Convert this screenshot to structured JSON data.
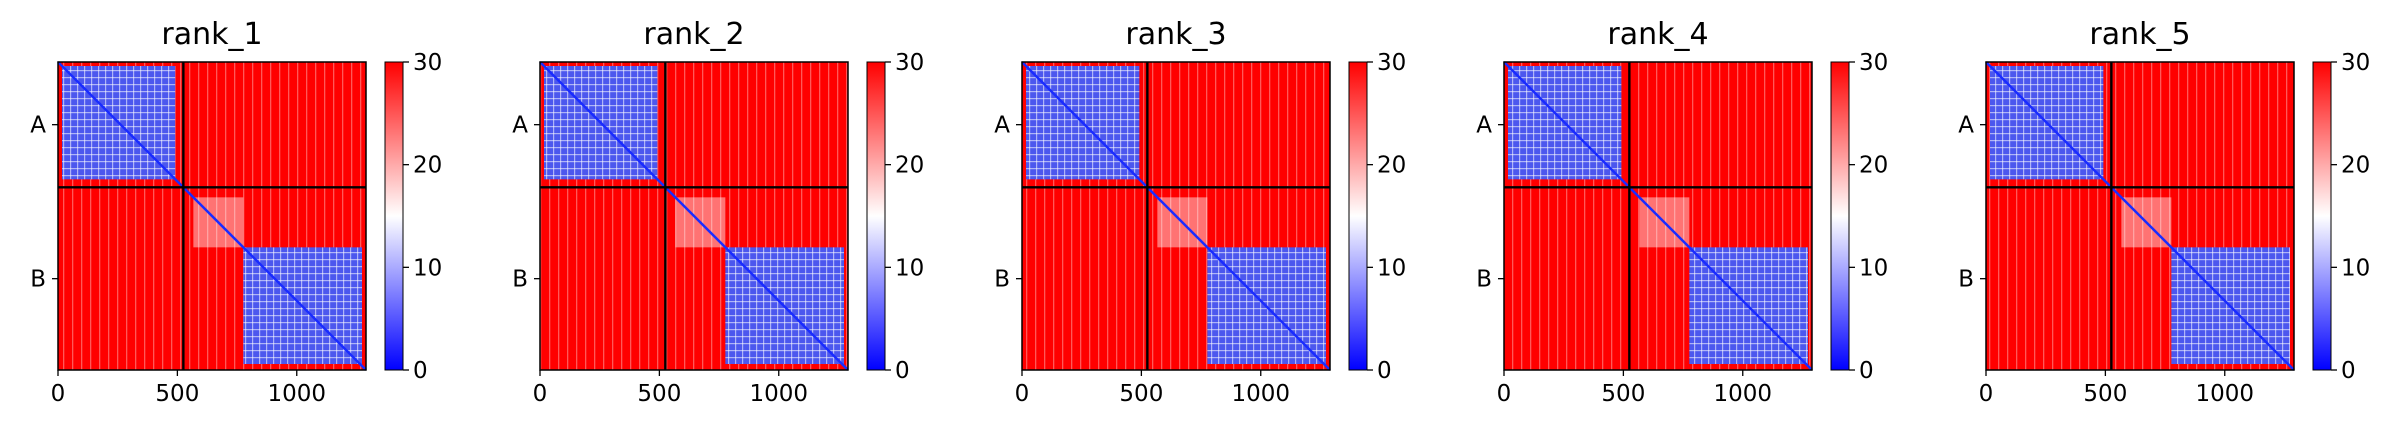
{
  "colormap": {
    "low": "#0000ff",
    "mid": "#ffffff",
    "high": "#ff0000",
    "name": "bwr"
  },
  "boundary_color": "#000000",
  "chart_data": [
    {
      "type": "heatmap",
      "title": "rank_1",
      "chain_labels": [
        "A",
        "B"
      ],
      "chain_boundary": 525,
      "residue_count": 1290,
      "xlim": [
        0,
        1290
      ],
      "xticks": [
        0,
        500,
        1000
      ],
      "xtick_labels": [
        "0",
        "500",
        "1000"
      ],
      "colorbar": {
        "vmin": 0,
        "vmax": 30,
        "ticks": [
          0,
          10,
          20,
          30
        ],
        "tick_labels": [
          "0",
          "10",
          "20",
          "30"
        ]
      }
    },
    {
      "type": "heatmap",
      "title": "rank_2",
      "chain_labels": [
        "A",
        "B"
      ],
      "chain_boundary": 525,
      "residue_count": 1290,
      "xlim": [
        0,
        1290
      ],
      "xticks": [
        0,
        500,
        1000
      ],
      "xtick_labels": [
        "0",
        "500",
        "1000"
      ],
      "colorbar": {
        "vmin": 0,
        "vmax": 30,
        "ticks": [
          0,
          10,
          20,
          30
        ],
        "tick_labels": [
          "0",
          "10",
          "20",
          "30"
        ]
      }
    },
    {
      "type": "heatmap",
      "title": "rank_3",
      "chain_labels": [
        "A",
        "B"
      ],
      "chain_boundary": 525,
      "residue_count": 1290,
      "xlim": [
        0,
        1290
      ],
      "xticks": [
        0,
        500,
        1000
      ],
      "xtick_labels": [
        "0",
        "500",
        "1000"
      ],
      "colorbar": {
        "vmin": 0,
        "vmax": 30,
        "ticks": [
          0,
          10,
          20,
          30
        ],
        "tick_labels": [
          "0",
          "10",
          "20",
          "30"
        ]
      }
    },
    {
      "type": "heatmap",
      "title": "rank_4",
      "chain_labels": [
        "A",
        "B"
      ],
      "chain_boundary": 525,
      "residue_count": 1290,
      "xlim": [
        0,
        1290
      ],
      "xticks": [
        0,
        500,
        1000
      ],
      "xtick_labels": [
        "0",
        "500",
        "1000"
      ],
      "colorbar": {
        "vmin": 0,
        "vmax": 30,
        "ticks": [
          0,
          10,
          20,
          30
        ],
        "tick_labels": [
          "0",
          "10",
          "20",
          "30"
        ]
      }
    },
    {
      "type": "heatmap",
      "title": "rank_5",
      "chain_labels": [
        "A",
        "B"
      ],
      "chain_boundary": 525,
      "residue_count": 1290,
      "xlim": [
        0,
        1290
      ],
      "xticks": [
        0,
        500,
        1000
      ],
      "xtick_labels": [
        "0",
        "500",
        "1000"
      ],
      "colorbar": {
        "vmin": 0,
        "vmax": 30,
        "ticks": [
          0,
          10,
          20,
          30
        ],
        "tick_labels": [
          "0",
          "10",
          "20",
          "30"
        ]
      }
    }
  ]
}
